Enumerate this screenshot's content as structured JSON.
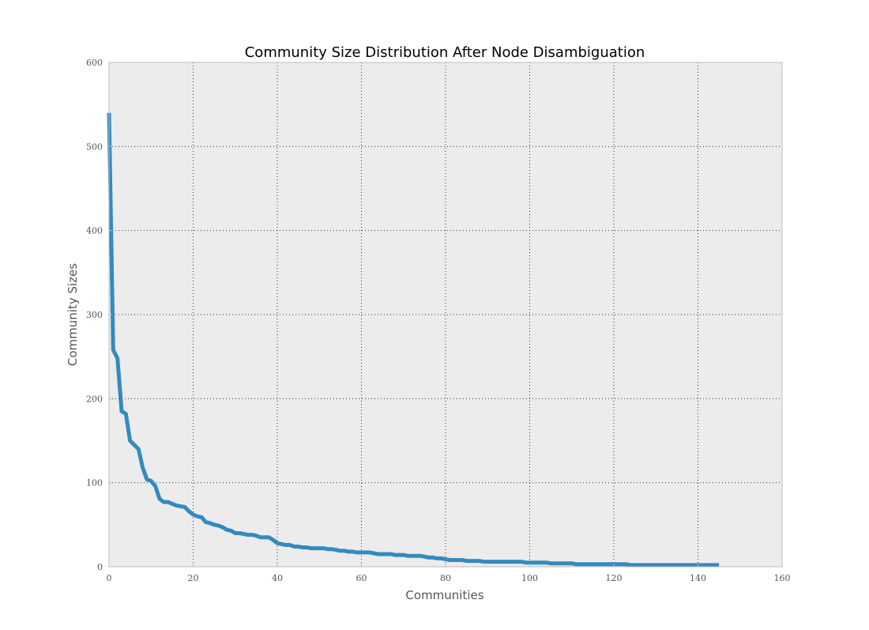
{
  "chart_data": {
    "type": "line",
    "title": "Community Size Distribution After Node Disambiguation",
    "xlabel": "Communities",
    "ylabel": "Community Sizes",
    "xlim": [
      0,
      160
    ],
    "ylim": [
      0,
      600
    ],
    "xticks": [
      0,
      20,
      40,
      60,
      80,
      100,
      120,
      140,
      160
    ],
    "yticks": [
      0,
      100,
      200,
      300,
      400,
      500,
      600
    ],
    "xtick_labels": [
      "0",
      "20",
      "40",
      "60",
      "80",
      "100",
      "120",
      "140",
      "160"
    ],
    "ytick_labels": [
      "0",
      "100",
      "200",
      "300",
      "400",
      "500",
      "600"
    ],
    "grid": true,
    "legend": "none",
    "series": [
      {
        "color": "#348abd",
        "x": [
          0,
          1,
          2,
          3,
          4,
          5,
          6,
          7,
          8,
          9,
          10,
          11,
          12,
          13,
          14,
          15,
          16,
          17,
          18,
          19,
          20,
          21,
          22,
          23,
          24,
          25,
          26,
          27,
          28,
          29,
          30,
          31,
          32,
          33,
          34,
          35,
          36,
          37,
          38,
          39,
          40,
          41,
          42,
          43,
          44,
          45,
          46,
          47,
          48,
          49,
          50,
          51,
          52,
          53,
          54,
          55,
          56,
          57,
          58,
          59,
          60,
          61,
          62,
          63,
          64,
          65,
          66,
          67,
          68,
          69,
          70,
          71,
          72,
          73,
          74,
          75,
          76,
          77,
          78,
          79,
          80,
          81,
          82,
          83,
          84,
          85,
          86,
          87,
          88,
          89,
          90,
          91,
          92,
          93,
          94,
          95,
          96,
          97,
          98,
          99,
          100,
          101,
          102,
          103,
          104,
          105,
          106,
          107,
          108,
          109,
          110,
          111,
          112,
          113,
          114,
          115,
          116,
          117,
          118,
          119,
          120,
          121,
          122,
          123,
          124,
          125,
          126,
          127,
          128,
          129,
          130,
          131,
          132,
          133,
          134,
          135,
          136,
          137,
          138,
          139,
          140,
          141,
          142,
          143,
          144,
          145
        ],
        "y": [
          540,
          258,
          248,
          185,
          182,
          150,
          145,
          140,
          118,
          104,
          102,
          96,
          81,
          77,
          77,
          75,
          73,
          72,
          71,
          66,
          62,
          60,
          59,
          53,
          52,
          50,
          49,
          47,
          44,
          43,
          40,
          40,
          39,
          38,
          38,
          37,
          35,
          35,
          35,
          32,
          28,
          27,
          26,
          26,
          24,
          24,
          23,
          23,
          22,
          22,
          22,
          22,
          21,
          21,
          20,
          19,
          19,
          18,
          18,
          17,
          17,
          17,
          17,
          16,
          15,
          15,
          15,
          15,
          14,
          14,
          14,
          13,
          13,
          13,
          13,
          12,
          11,
          11,
          10,
          10,
          9,
          8,
          8,
          8,
          8,
          7,
          7,
          7,
          7,
          6,
          6,
          6,
          6,
          6,
          6,
          6,
          6,
          6,
          6,
          5,
          5,
          5,
          5,
          5,
          5,
          4,
          4,
          4,
          4,
          4,
          4,
          3,
          3,
          3,
          3,
          3,
          3,
          3,
          3,
          3,
          3,
          3,
          3,
          3,
          2,
          2,
          2,
          2,
          2,
          2,
          2,
          2,
          2,
          2,
          2,
          2,
          2,
          2,
          2,
          2,
          2,
          2,
          2,
          2,
          2,
          2
        ]
      }
    ]
  },
  "style": {
    "plot_bg": "#ececec",
    "frame": "#bcbcbc",
    "grid": "#333333",
    "text": "#555555",
    "line": "#348abd"
  }
}
